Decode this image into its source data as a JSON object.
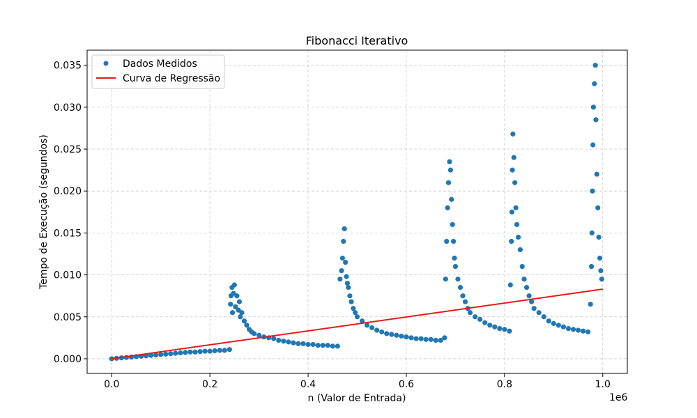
{
  "chart_data": {
    "type": "scatter",
    "title": "Fibonacci Iterativo",
    "xlabel": "n (Valor de Entrada)",
    "ylabel": "Tempo de Execução (segundos)",
    "x_offset_label": "1e6",
    "xlim": [
      -50000,
      1050000
    ],
    "ylim": [
      -0.00175,
      0.0368
    ],
    "x_ticks": [
      0,
      200000,
      400000,
      600000,
      800000,
      1000000
    ],
    "x_tick_labels": [
      "0.0",
      "0.2",
      "0.4",
      "0.6",
      "0.8",
      "1.0"
    ],
    "y_ticks": [
      0,
      0.005,
      0.01,
      0.015,
      0.02,
      0.025,
      0.03,
      0.035
    ],
    "y_tick_labels": [
      "0.000",
      "0.005",
      "0.010",
      "0.015",
      "0.020",
      "0.025",
      "0.030",
      "0.035"
    ],
    "grid": true,
    "legend_position": "top-left",
    "legend": [
      {
        "label": "Dados Medidos",
        "kind": "marker",
        "color": "#1f77b4"
      },
      {
        "label": "Curva de Regressão",
        "kind": "line",
        "color": "#e41a1c"
      }
    ],
    "series": [
      {
        "name": "Dados Medidos",
        "kind": "scatter",
        "color": "#1f77b4",
        "points": [
          [
            0,
            0
          ],
          [
            10000,
            5e-05
          ],
          [
            20000,
            0.0001
          ],
          [
            30000,
            0.00015
          ],
          [
            40000,
            0.0002
          ],
          [
            50000,
            0.00025
          ],
          [
            60000,
            0.0003
          ],
          [
            70000,
            0.00035
          ],
          [
            80000,
            0.0004
          ],
          [
            90000,
            0.00045
          ],
          [
            100000,
            0.0005
          ],
          [
            110000,
            0.00055
          ],
          [
            120000,
            0.0006
          ],
          [
            130000,
            0.00065
          ],
          [
            140000,
            0.0007
          ],
          [
            150000,
            0.00075
          ],
          [
            160000,
            0.0008
          ],
          [
            170000,
            0.0008
          ],
          [
            180000,
            0.00085
          ],
          [
            190000,
            0.0009
          ],
          [
            200000,
            0.0009
          ],
          [
            210000,
            0.00095
          ],
          [
            220000,
            0.001
          ],
          [
            230000,
            0.001
          ],
          [
            240000,
            0.0011
          ],
          [
            242000,
            0.0065
          ],
          [
            243000,
            0.0075
          ],
          [
            245000,
            0.0085
          ],
          [
            246000,
            0.0055
          ],
          [
            248000,
            0.0078
          ],
          [
            250000,
            0.0088
          ],
          [
            252000,
            0.0062
          ],
          [
            255000,
            0.0075
          ],
          [
            258000,
            0.0058
          ],
          [
            260000,
            0.0068
          ],
          [
            262000,
            0.005
          ],
          [
            265000,
            0.0055
          ],
          [
            270000,
            0.0045
          ],
          [
            275000,
            0.004
          ],
          [
            280000,
            0.0035
          ],
          [
            285000,
            0.0032
          ],
          [
            290000,
            0.003
          ],
          [
            300000,
            0.0028
          ],
          [
            310000,
            0.0026
          ],
          [
            320000,
            0.0025
          ],
          [
            330000,
            0.0024
          ],
          [
            340000,
            0.0022
          ],
          [
            350000,
            0.0021
          ],
          [
            360000,
            0.002
          ],
          [
            370000,
            0.0019
          ],
          [
            380000,
            0.0018
          ],
          [
            390000,
            0.0018
          ],
          [
            400000,
            0.0017
          ],
          [
            410000,
            0.0017
          ],
          [
            420000,
            0.0016
          ],
          [
            430000,
            0.0016
          ],
          [
            440000,
            0.0016
          ],
          [
            450000,
            0.0015
          ],
          [
            460000,
            0.0015
          ],
          [
            465000,
            0.0095
          ],
          [
            468000,
            0.0105
          ],
          [
            470000,
            0.012
          ],
          [
            472000,
            0.014
          ],
          [
            474000,
            0.0155
          ],
          [
            476000,
            0.0115
          ],
          [
            478000,
            0.0098
          ],
          [
            480000,
            0.009
          ],
          [
            482000,
            0.0085
          ],
          [
            485000,
            0.0075
          ],
          [
            488000,
            0.0068
          ],
          [
            492000,
            0.006
          ],
          [
            496000,
            0.0055
          ],
          [
            500000,
            0.005
          ],
          [
            510000,
            0.0045
          ],
          [
            520000,
            0.004
          ],
          [
            530000,
            0.0037
          ],
          [
            540000,
            0.0034
          ],
          [
            550000,
            0.0032
          ],
          [
            560000,
            0.003
          ],
          [
            570000,
            0.0029
          ],
          [
            580000,
            0.0028
          ],
          [
            590000,
            0.0027
          ],
          [
            600000,
            0.0026
          ],
          [
            610000,
            0.0025
          ],
          [
            620000,
            0.0024
          ],
          [
            630000,
            0.0024
          ],
          [
            640000,
            0.0023
          ],
          [
            650000,
            0.0023
          ],
          [
            660000,
            0.0022
          ],
          [
            670000,
            0.0022
          ],
          [
            678000,
            0.0025
          ],
          [
            680000,
            0.0095
          ],
          [
            682000,
            0.014
          ],
          [
            684000,
            0.018
          ],
          [
            686000,
            0.021
          ],
          [
            688000,
            0.0235
          ],
          [
            690000,
            0.0225
          ],
          [
            692000,
            0.019
          ],
          [
            694000,
            0.016
          ],
          [
            696000,
            0.014
          ],
          [
            698000,
            0.012
          ],
          [
            700000,
            0.011
          ],
          [
            705000,
            0.0095
          ],
          [
            710000,
            0.0085
          ],
          [
            715000,
            0.0075
          ],
          [
            720000,
            0.0068
          ],
          [
            725000,
            0.006
          ],
          [
            730000,
            0.0055
          ],
          [
            740000,
            0.005
          ],
          [
            750000,
            0.0047
          ],
          [
            760000,
            0.0043
          ],
          [
            770000,
            0.004
          ],
          [
            780000,
            0.0038
          ],
          [
            790000,
            0.0036
          ],
          [
            800000,
            0.0035
          ],
          [
            810000,
            0.0033
          ],
          [
            812000,
            0.0088
          ],
          [
            814000,
            0.014
          ],
          [
            815000,
            0.0175
          ],
          [
            816000,
            0.0225
          ],
          [
            817000,
            0.0268
          ],
          [
            819000,
            0.024
          ],
          [
            821000,
            0.021
          ],
          [
            823000,
            0.018
          ],
          [
            825000,
            0.016
          ],
          [
            828000,
            0.0145
          ],
          [
            832000,
            0.013
          ],
          [
            836000,
            0.011
          ],
          [
            840000,
            0.0095
          ],
          [
            845000,
            0.0085
          ],
          [
            850000,
            0.0075
          ],
          [
            855000,
            0.0068
          ],
          [
            860000,
            0.006
          ],
          [
            870000,
            0.0055
          ],
          [
            880000,
            0.005
          ],
          [
            890000,
            0.0045
          ],
          [
            900000,
            0.0042
          ],
          [
            910000,
            0.004
          ],
          [
            920000,
            0.0038
          ],
          [
            930000,
            0.0036
          ],
          [
            940000,
            0.0035
          ],
          [
            950000,
            0.0034
          ],
          [
            960000,
            0.0033
          ],
          [
            970000,
            0.0032
          ],
          [
            975000,
            0.0065
          ],
          [
            977000,
            0.011
          ],
          [
            978000,
            0.015
          ],
          [
            979000,
            0.02
          ],
          [
            980000,
            0.0255
          ],
          [
            981000,
            0.03
          ],
          [
            983000,
            0.0328
          ],
          [
            985000,
            0.035
          ],
          [
            986000,
            0.0285
          ],
          [
            988000,
            0.022
          ],
          [
            990000,
            0.018
          ],
          [
            992000,
            0.0145
          ],
          [
            994000,
            0.012
          ],
          [
            996000,
            0.0105
          ],
          [
            998000,
            0.0095
          ]
        ]
      },
      {
        "name": "Curva de Regressão",
        "kind": "line",
        "color": "#e41a1c",
        "points": [
          [
            0,
            0
          ],
          [
            1000000,
            0.0083
          ]
        ]
      }
    ]
  }
}
